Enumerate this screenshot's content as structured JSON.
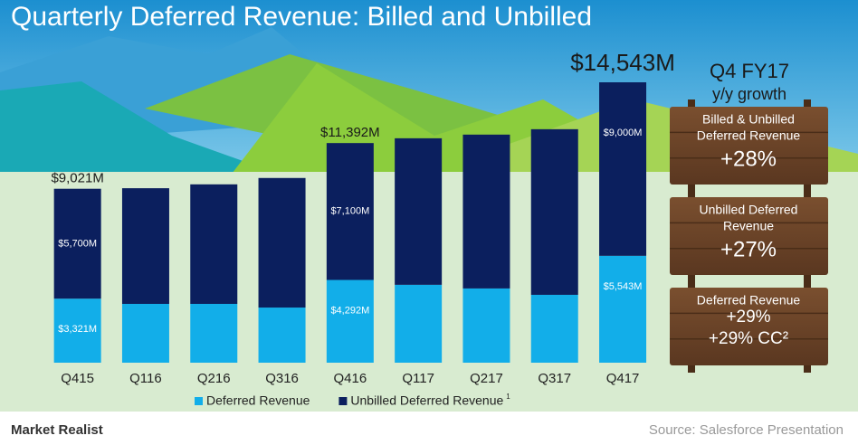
{
  "chart_data": {
    "type": "stacked-bar",
    "title": "Quarterly Deferred Revenue: Billed and Unbilled",
    "categories": [
      "Q415",
      "Q116",
      "Q216",
      "Q316",
      "Q416",
      "Q117",
      "Q217",
      "Q317",
      "Q417"
    ],
    "series": [
      {
        "name": "Deferred Revenue",
        "color": "#12aee9",
        "values": [
          3321,
          3050,
          3050,
          2860,
          4292,
          4040,
          3850,
          3520,
          5543
        ],
        "value_labels": [
          "$3,321M",
          null,
          null,
          null,
          "$4,292M",
          null,
          null,
          null,
          "$5,543M"
        ]
      },
      {
        "name": "Unbilled Deferred Revenue",
        "footnote": "1",
        "color": "#0b1f5e",
        "values": [
          5700,
          6000,
          6200,
          6720,
          7100,
          7600,
          7980,
          8590,
          9000
        ],
        "value_labels": [
          "$5,700M",
          null,
          null,
          null,
          "$7,100M",
          null,
          null,
          null,
          "$9,000M"
        ]
      }
    ],
    "annotations": [
      {
        "category": "Q415",
        "text": "$9,021M"
      },
      {
        "category": "Q416",
        "text": "$11,392M"
      },
      {
        "category": "Q417",
        "text": "$14,543M"
      }
    ],
    "legend": "bottom"
  },
  "panel": {
    "title": "Q4 FY17",
    "subtitle": "y/y growth",
    "signs": [
      {
        "lines": [
          "Billed & Unbilled",
          "Deferred Revenue"
        ],
        "values": [
          "+28%"
        ]
      },
      {
        "lines": [
          "Unbilled Deferred",
          "Revenue"
        ],
        "values": [
          "+27%"
        ]
      },
      {
        "lines": [
          "Deferred Revenue"
        ],
        "values": [
          "+29%",
          "+29% CC²"
        ]
      }
    ]
  },
  "footer": {
    "brand": "Market Realist",
    "source": "Source:  Salesforce Presentation"
  }
}
